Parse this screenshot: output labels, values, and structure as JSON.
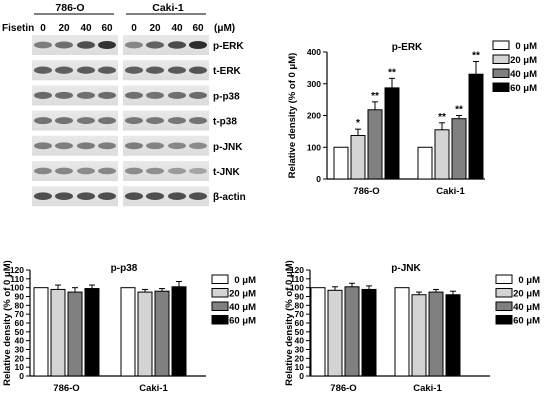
{
  "blot": {
    "treatment_label": "Fisetin",
    "cell_lines": [
      "786-O",
      "Caki-1"
    ],
    "doses": [
      "0",
      "20",
      "40",
      "60"
    ],
    "unit": "(μM)",
    "bands": [
      "p-ERK",
      "t-ERK",
      "p-p38",
      "t-p38",
      "p-JNK",
      "t-JNK",
      "β-actin"
    ]
  },
  "chart_data": [
    {
      "type": "bar",
      "title": "p-ERK",
      "ylabel": "Relative density (% of 0 μM)",
      "categories": [
        "786-O",
        "Caki-1"
      ],
      "ylim": [
        0,
        400
      ],
      "yticks": [
        "0",
        "100",
        "200",
        "300",
        "400"
      ],
      "legend_position": "top-right",
      "series": [
        {
          "name": "0 μM",
          "color": "#ffffff",
          "values": [
            100,
            100
          ],
          "errors": [
            0,
            0
          ],
          "labels": [
            "",
            ""
          ]
        },
        {
          "name": "20 μM",
          "color": "#d4d4d4",
          "values": [
            137,
            155
          ],
          "errors": [
            20,
            22
          ],
          "labels": [
            "*",
            "**"
          ]
        },
        {
          "name": "40 μM",
          "color": "#808080",
          "values": [
            218,
            190
          ],
          "errors": [
            25,
            10
          ],
          "labels": [
            "**",
            "**"
          ]
        },
        {
          "name": "60 μM",
          "color": "#000000",
          "values": [
            287,
            330
          ],
          "errors": [
            30,
            40
          ],
          "labels": [
            "**",
            "**"
          ]
        }
      ]
    },
    {
      "type": "bar",
      "title": "p-p38",
      "ylabel": "Relative density (% of 0 μM)",
      "categories": [
        "786-O",
        "Caki-1"
      ],
      "ylim": [
        0,
        120
      ],
      "yticks": [
        "0",
        "10",
        "20",
        "30",
        "40",
        "50",
        "60",
        "70",
        "80",
        "90",
        "100",
        "110",
        "120"
      ],
      "legend_position": "top-right",
      "series": [
        {
          "name": "0 μM",
          "color": "#ffffff",
          "values": [
            100,
            100
          ],
          "errors": [
            0,
            0
          ],
          "labels": [
            "",
            ""
          ]
        },
        {
          "name": "20 μM",
          "color": "#d4d4d4",
          "values": [
            98,
            95
          ],
          "errors": [
            5,
            3
          ],
          "labels": [
            "",
            ""
          ]
        },
        {
          "name": "40 μM",
          "color": "#808080",
          "values": [
            95,
            96
          ],
          "errors": [
            5,
            3
          ],
          "labels": [
            "",
            ""
          ]
        },
        {
          "name": "60 μM",
          "color": "#000000",
          "values": [
            99,
            101
          ],
          "errors": [
            4,
            6
          ],
          "labels": [
            "",
            ""
          ]
        }
      ]
    },
    {
      "type": "bar",
      "title": "p-JNK",
      "ylabel": "Relative density (% of 0 μM)",
      "categories": [
        "786-O",
        "Caki-1"
      ],
      "ylim": [
        0,
        120
      ],
      "yticks": [
        "0",
        "10",
        "20",
        "30",
        "40",
        "50",
        "60",
        "70",
        "80",
        "90",
        "100",
        "110",
        "120"
      ],
      "legend_position": "top-right",
      "series": [
        {
          "name": "0 μM",
          "color": "#ffffff",
          "values": [
            100,
            100
          ],
          "errors": [
            0,
            0
          ],
          "labels": [
            "",
            ""
          ]
        },
        {
          "name": "20 μM",
          "color": "#d4d4d4",
          "values": [
            97,
            92
          ],
          "errors": [
            4,
            3
          ],
          "labels": [
            "",
            ""
          ]
        },
        {
          "name": "40 μM",
          "color": "#808080",
          "values": [
            101,
            95
          ],
          "errors": [
            4,
            3
          ],
          "labels": [
            "",
            ""
          ]
        },
        {
          "name": "60 μM",
          "color": "#000000",
          "values": [
            98,
            92
          ],
          "errors": [
            4,
            4
          ],
          "labels": [
            "",
            ""
          ]
        }
      ]
    }
  ]
}
